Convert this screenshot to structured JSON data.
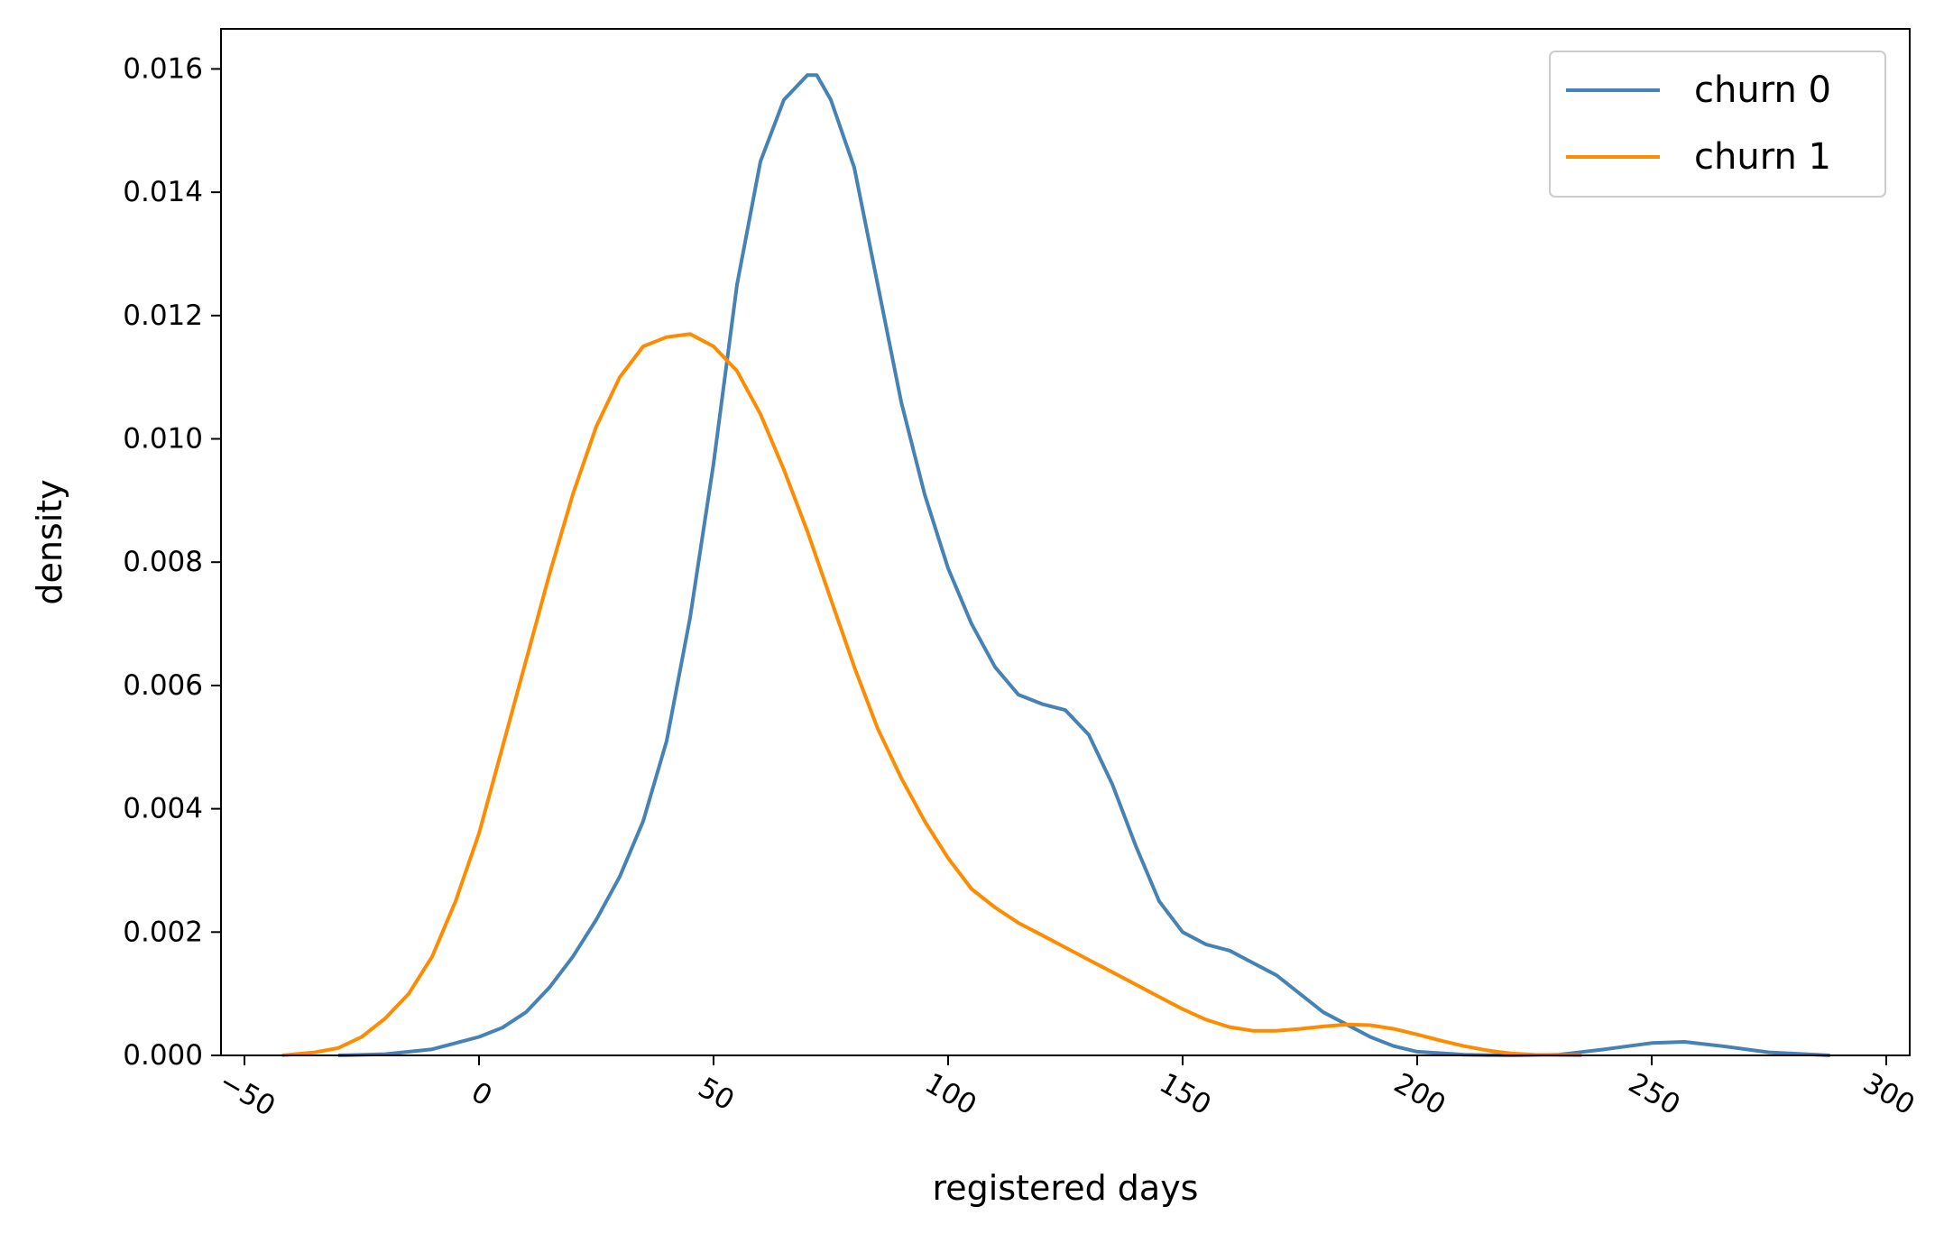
{
  "chart_data": {
    "type": "line",
    "title": "",
    "xlabel": "registered days",
    "ylabel": "density",
    "xlim": [
      -55,
      305
    ],
    "ylim": [
      0,
      0.01665
    ],
    "x_ticks": [
      -50,
      0,
      50,
      100,
      150,
      200,
      250,
      300
    ],
    "x_tick_labels": [
      "−50",
      "0",
      "50",
      "100",
      "150",
      "200",
      "250",
      "300"
    ],
    "y_ticks": [
      0,
      0.002,
      0.004,
      0.006,
      0.008,
      0.01,
      0.012,
      0.014,
      0.016
    ],
    "y_tick_labels": [
      "0.000",
      "0.002",
      "0.004",
      "0.006",
      "0.008",
      "0.010",
      "0.012",
      "0.014",
      "0.016"
    ],
    "grid": false,
    "legend_position": "top-right",
    "series": [
      {
        "name": "churn 0",
        "color": "#4682b4",
        "points": [
          [
            -30,
            0
          ],
          [
            -20,
            2e-05
          ],
          [
            -10,
            0.0001
          ],
          [
            0,
            0.0003
          ],
          [
            5,
            0.00045
          ],
          [
            10,
            0.0007
          ],
          [
            15,
            0.0011
          ],
          [
            20,
            0.0016
          ],
          [
            25,
            0.0022
          ],
          [
            30,
            0.0029
          ],
          [
            35,
            0.0038
          ],
          [
            40,
            0.0051
          ],
          [
            45,
            0.0071
          ],
          [
            50,
            0.0096
          ],
          [
            55,
            0.0125
          ],
          [
            60,
            0.0145
          ],
          [
            65,
            0.0155
          ],
          [
            70,
            0.0159
          ],
          [
            72,
            0.0159
          ],
          [
            75,
            0.0155
          ],
          [
            80,
            0.0144
          ],
          [
            85,
            0.0125
          ],
          [
            90,
            0.0106
          ],
          [
            95,
            0.0091
          ],
          [
            100,
            0.0079
          ],
          [
            105,
            0.007
          ],
          [
            110,
            0.0063
          ],
          [
            115,
            0.00585
          ],
          [
            120,
            0.0057
          ],
          [
            125,
            0.0056
          ],
          [
            130,
            0.0052
          ],
          [
            135,
            0.0044
          ],
          [
            140,
            0.0034
          ],
          [
            145,
            0.0025
          ],
          [
            150,
            0.002
          ],
          [
            155,
            0.0018
          ],
          [
            160,
            0.0017
          ],
          [
            165,
            0.0015
          ],
          [
            170,
            0.0013
          ],
          [
            175,
            0.001
          ],
          [
            180,
            0.0007
          ],
          [
            185,
            0.0005
          ],
          [
            190,
            0.0003
          ],
          [
            195,
            0.00015
          ],
          [
            200,
            6e-05
          ],
          [
            210,
            1e-05
          ],
          [
            220,
            0
          ],
          [
            230,
            1e-05
          ],
          [
            240,
            0.0001
          ],
          [
            250,
            0.0002
          ],
          [
            257,
            0.00022
          ],
          [
            265,
            0.00015
          ],
          [
            275,
            5e-05
          ],
          [
            288,
            0
          ]
        ]
      },
      {
        "name": "churn 1",
        "color": "#ff8c00",
        "points": [
          [
            -42,
            0
          ],
          [
            -35,
            5e-05
          ],
          [
            -30,
            0.00012
          ],
          [
            -25,
            0.0003
          ],
          [
            -20,
            0.0006
          ],
          [
            -15,
            0.001
          ],
          [
            -10,
            0.0016
          ],
          [
            -5,
            0.0025
          ],
          [
            0,
            0.0036
          ],
          [
            5,
            0.005
          ],
          [
            10,
            0.0064
          ],
          [
            15,
            0.0078
          ],
          [
            20,
            0.0091
          ],
          [
            25,
            0.0102
          ],
          [
            30,
            0.011
          ],
          [
            35,
            0.0115
          ],
          [
            40,
            0.01165
          ],
          [
            45,
            0.0117
          ],
          [
            50,
            0.0115
          ],
          [
            55,
            0.0111
          ],
          [
            60,
            0.0104
          ],
          [
            65,
            0.0095
          ],
          [
            70,
            0.0085
          ],
          [
            75,
            0.0074
          ],
          [
            80,
            0.0063
          ],
          [
            85,
            0.0053
          ],
          [
            90,
            0.0045
          ],
          [
            95,
            0.0038
          ],
          [
            100,
            0.0032
          ],
          [
            105,
            0.0027
          ],
          [
            110,
            0.0024
          ],
          [
            115,
            0.00215
          ],
          [
            120,
            0.00195
          ],
          [
            125,
            0.00175
          ],
          [
            130,
            0.00155
          ],
          [
            135,
            0.00135
          ],
          [
            140,
            0.00115
          ],
          [
            145,
            0.00095
          ],
          [
            150,
            0.00075
          ],
          [
            155,
            0.00058
          ],
          [
            160,
            0.00046
          ],
          [
            165,
            0.0004
          ],
          [
            170,
            0.0004
          ],
          [
            175,
            0.00043
          ],
          [
            180,
            0.00047
          ],
          [
            185,
            0.0005
          ],
          [
            190,
            0.00049
          ],
          [
            195,
            0.00043
          ],
          [
            200,
            0.00034
          ],
          [
            205,
            0.00024
          ],
          [
            210,
            0.00015
          ],
          [
            215,
            8e-05
          ],
          [
            220,
            3e-05
          ],
          [
            225,
            1e-05
          ],
          [
            235,
            0
          ]
        ]
      }
    ]
  }
}
